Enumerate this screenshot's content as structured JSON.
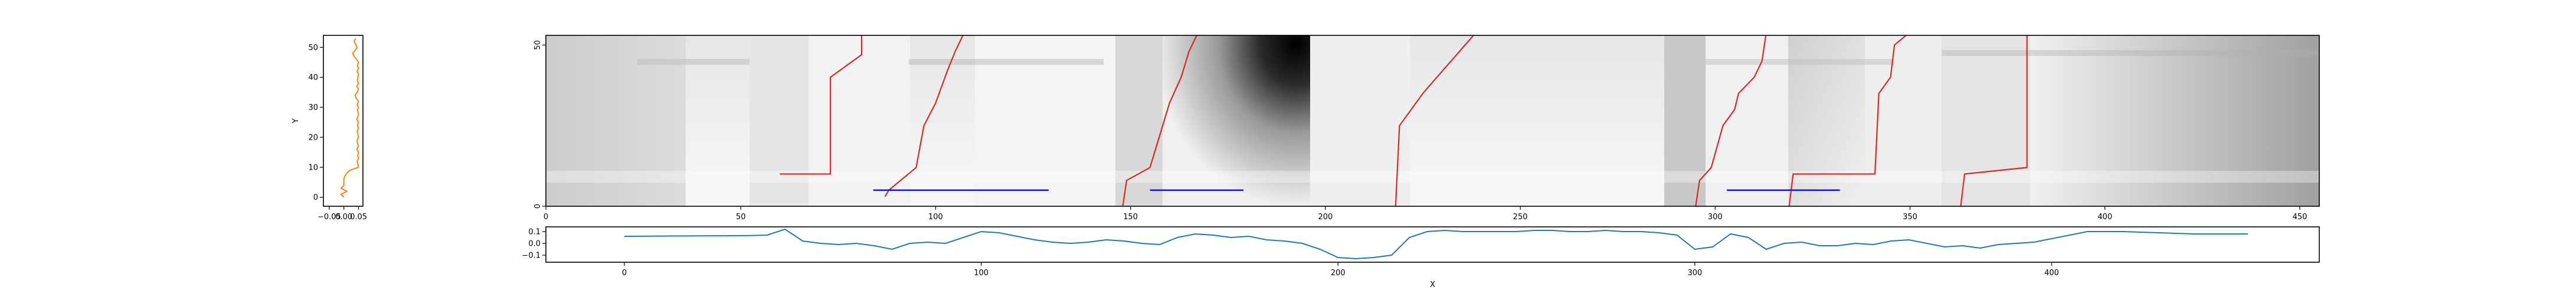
{
  "chart_data": [
    {
      "id": "side",
      "type": "line",
      "series": [
        {
          "values_x": [
            0.0,
            -0.01,
            0.01,
            -0.01,
            0.0,
            0.0,
            0.0,
            0.003,
            0.01,
            0.02,
            0.05,
            0.048,
            0.045,
            0.05,
            0.047,
            0.05,
            0.044,
            0.05,
            0.046,
            0.045,
            0.05,
            0.048,
            0.045,
            0.05,
            0.046,
            0.05,
            0.044,
            0.048,
            0.05,
            0.046,
            0.05,
            0.045,
            0.05,
            0.042,
            0.038,
            0.045,
            0.05,
            0.044,
            0.05,
            0.046,
            0.048,
            0.05,
            0.045,
            0.05,
            0.046,
            0.05,
            0.043,
            0.035,
            0.03,
            0.038,
            0.045,
            0.04,
            0.035,
            0.04
          ],
          "values_y": [
            0,
            1,
            2,
            3,
            4,
            5,
            6,
            7,
            8,
            9,
            10,
            11,
            12,
            13,
            14,
            15,
            16,
            17,
            18,
            19,
            20,
            21,
            22,
            23,
            24,
            25,
            26,
            27,
            28,
            29,
            30,
            31,
            32,
            33,
            34,
            35,
            36,
            37,
            38,
            39,
            40,
            41,
            42,
            43,
            44,
            45,
            46,
            47,
            48,
            49,
            50,
            51,
            52,
            53
          ],
          "color": "#ff7f0e"
        }
      ],
      "xlim": [
        -0.07,
        0.065
      ],
      "ylim": [
        -3,
        54
      ],
      "yticks": [
        0,
        10,
        20,
        30,
        40,
        50
      ],
      "xtick_labels": [
        "−0.05",
        "0.00",
        "0.05"
      ],
      "xtick_values": [
        -0.05,
        0.0,
        0.05
      ],
      "ylabel": "Y"
    },
    {
      "id": "heatmap",
      "type": "heatmap",
      "colormap": "gray_r",
      "xlim": [
        0,
        455
      ],
      "ylim": [
        0,
        53
      ],
      "xticks": [
        0,
        50,
        100,
        150,
        200,
        250,
        300,
        350,
        400,
        450
      ],
      "yticks": [
        0,
        50
      ],
      "path_color": "#d62728",
      "seg_color": "#0000ff",
      "paths": [
        [
          [
            60,
            10
          ],
          [
            73,
            10
          ],
          [
            73,
            40
          ],
          [
            81,
            47
          ],
          [
            81,
            53
          ]
        ],
        [
          [
            87,
            3
          ],
          [
            88,
            5
          ],
          [
            95,
            12
          ],
          [
            97,
            25
          ],
          [
            100,
            32
          ],
          [
            103,
            42
          ],
          [
            105,
            48
          ],
          [
            107,
            53
          ]
        ],
        [
          [
            148,
            0
          ],
          [
            149,
            8
          ],
          [
            155,
            12
          ],
          [
            157,
            20
          ],
          [
            160,
            32
          ],
          [
            163,
            40
          ],
          [
            165,
            48
          ],
          [
            167,
            53
          ]
        ],
        [
          [
            218,
            0
          ],
          [
            219,
            25
          ],
          [
            225,
            35
          ],
          [
            238,
            53
          ]
        ],
        [
          [
            295,
            0
          ],
          [
            296,
            8
          ],
          [
            299,
            12
          ],
          [
            302,
            25
          ],
          [
            305,
            30
          ],
          [
            306,
            35
          ],
          [
            310,
            40
          ],
          [
            312,
            45
          ],
          [
            313,
            53
          ]
        ],
        [
          [
            319,
            0
          ],
          [
            320,
            10
          ],
          [
            341,
            10
          ],
          [
            342,
            35
          ],
          [
            345,
            40
          ],
          [
            346,
            50
          ],
          [
            349,
            53
          ]
        ],
        [
          [
            363,
            0
          ],
          [
            364,
            10
          ],
          [
            380,
            12
          ],
          [
            380,
            53
          ]
        ]
      ],
      "segments": [
        [
          84,
          129,
          5
        ],
        [
          155,
          179,
          5
        ],
        [
          303,
          332,
          5
        ]
      ]
    },
    {
      "id": "bottom",
      "type": "line",
      "series": [
        {
          "x": [
            0,
            10,
            20,
            30,
            35,
            40,
            45,
            50,
            55,
            60,
            65,
            70,
            75,
            80,
            85,
            90,
            95,
            100,
            105,
            110,
            115,
            120,
            125,
            130,
            135,
            140,
            145,
            150,
            155,
            160,
            165,
            170,
            175,
            180,
            185,
            190,
            195,
            200,
            205,
            210,
            215,
            220,
            225,
            230,
            235,
            240,
            245,
            250,
            255,
            260,
            265,
            270,
            275,
            280,
            285,
            290,
            295,
            300,
            305,
            310,
            315,
            320,
            325,
            330,
            335,
            340,
            345,
            350,
            355,
            360,
            365,
            370,
            375,
            380,
            385,
            390,
            395,
            400,
            405,
            410,
            420,
            430,
            440,
            450,
            455
          ],
          "y": [
            0.06,
            0.062,
            0.064,
            0.065,
            0.066,
            0.07,
            0.12,
            0.02,
            0.0,
            -0.01,
            0.0,
            -0.02,
            -0.05,
            0.0,
            0.01,
            0.0,
            0.05,
            0.1,
            0.09,
            0.06,
            0.03,
            0.01,
            0.0,
            0.01,
            0.03,
            0.02,
            0.0,
            -0.01,
            0.05,
            0.08,
            0.07,
            0.05,
            0.06,
            0.03,
            0.02,
            0.0,
            -0.05,
            -0.12,
            -0.13,
            -0.12,
            -0.1,
            0.05,
            0.1,
            0.11,
            0.1,
            0.1,
            0.1,
            0.1,
            0.11,
            0.11,
            0.1,
            0.1,
            0.11,
            0.1,
            0.1,
            0.09,
            0.07,
            -0.05,
            -0.03,
            0.08,
            0.05,
            -0.05,
            0.0,
            0.01,
            -0.02,
            -0.02,
            0.0,
            -0.01,
            0.02,
            0.03,
            0.0,
            -0.03,
            -0.02,
            -0.04,
            -0.01,
            0.0,
            0.01,
            0.04,
            0.07,
            0.1,
            0.1,
            0.09,
            0.08,
            0.08,
            0.08
          ],
          "color": "#1f77b4"
        }
      ],
      "xlim": [
        -22,
        475
      ],
      "ylim": [
        -0.16,
        0.14
      ],
      "xticks": [
        0,
        100,
        200,
        300,
        400
      ],
      "ytick_labels": [
        "−0.1",
        "0.0",
        "0.1"
      ],
      "ytick_values": [
        -0.1,
        0.0,
        0.1
      ],
      "xlabel": "X"
    }
  ]
}
